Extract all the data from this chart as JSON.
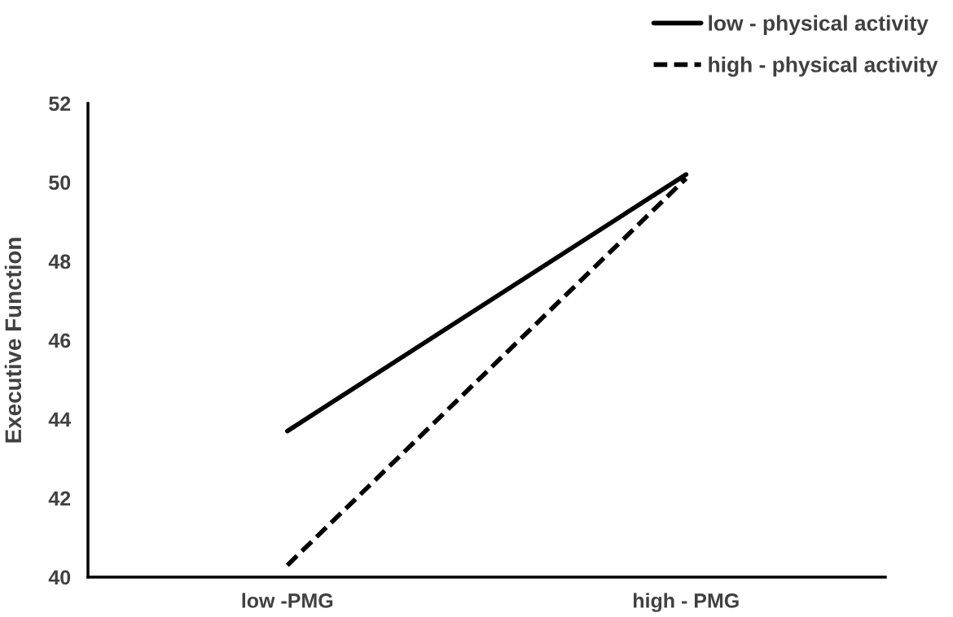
{
  "chart_data": {
    "type": "line",
    "ylabel": "Executive Function",
    "categories": [
      "low -PMG",
      "high - PMG"
    ],
    "series": [
      {
        "name": "low - physical activity",
        "color": "#000000",
        "line_style": "solid",
        "values": [
          43.7,
          50.2
        ]
      },
      {
        "name": "high - physical activity",
        "color": "#000000",
        "line_style": "dashed",
        "values": [
          40.3,
          50.1
        ]
      }
    ],
    "ylim": [
      40,
      52
    ],
    "yticks": [
      40,
      42,
      44,
      46,
      48,
      50,
      52
    ],
    "grid": false,
    "legend": "top right",
    "marker": "none"
  }
}
